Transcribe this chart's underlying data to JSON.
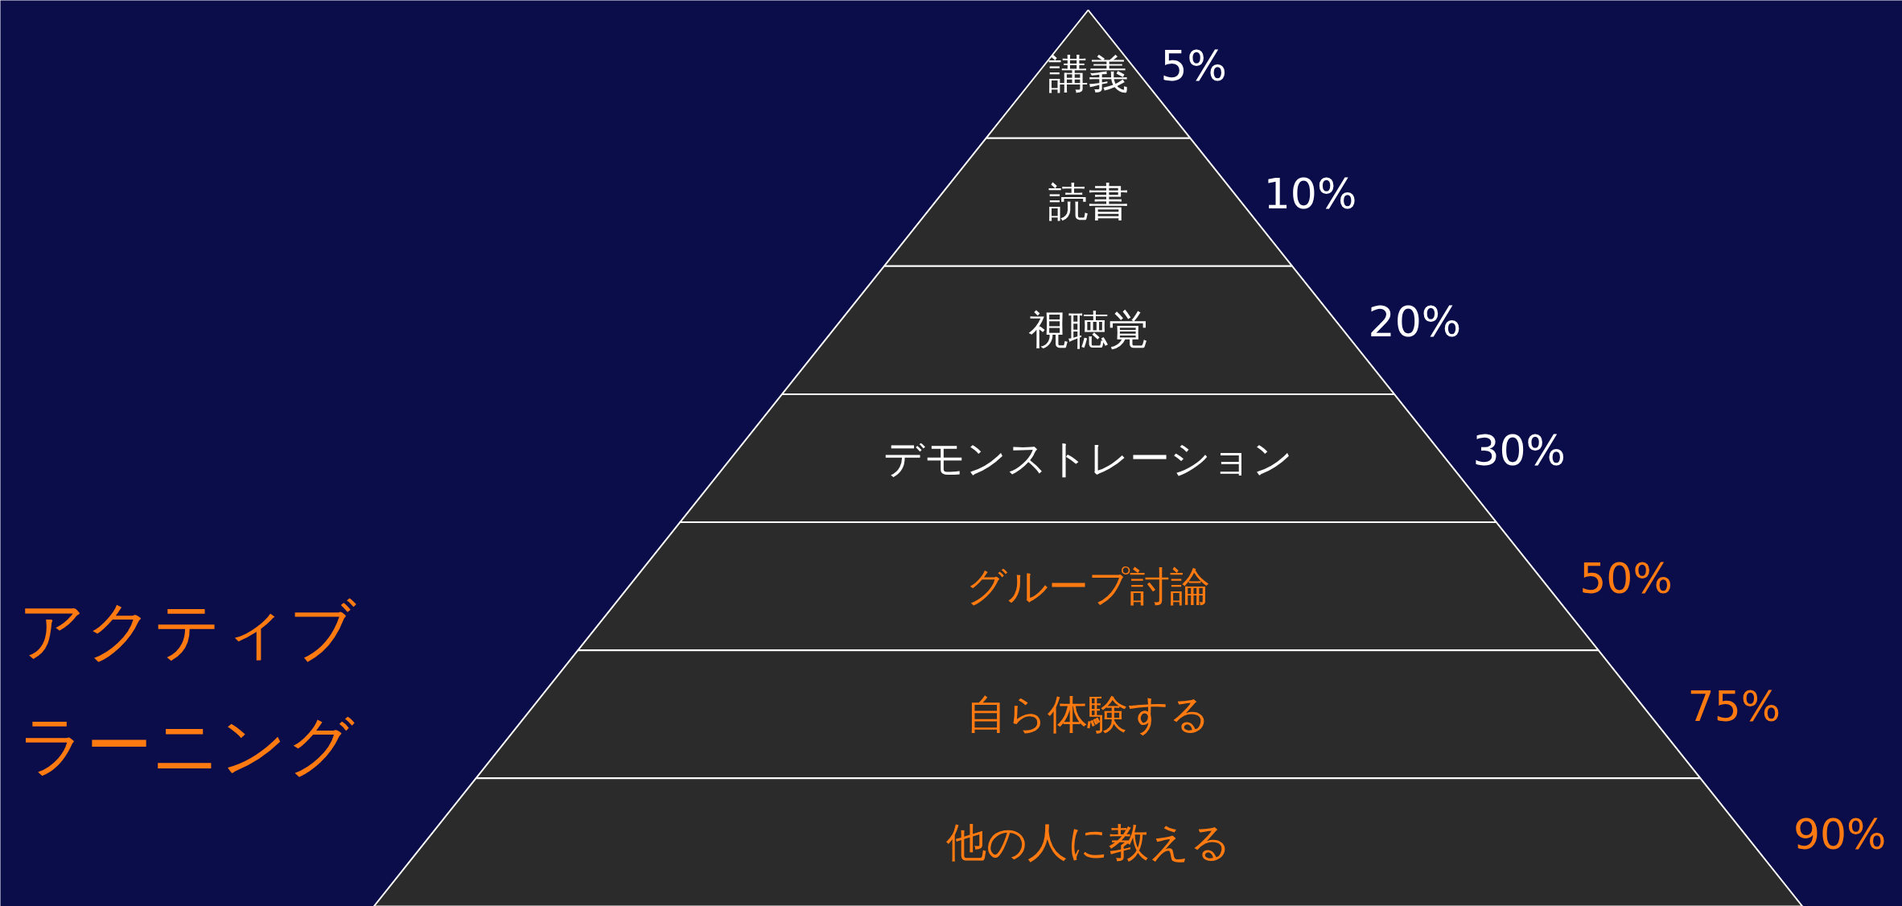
{
  "chart_data": {
    "type": "other",
    "categories": [
      "講義",
      "読書",
      "視聴覚",
      "デモンストレーション",
      "グループ討論",
      "自ら体験する",
      "他の人に教える"
    ],
    "series": [
      {
        "color": "#ffffff",
        "values": [
          5,
          10,
          20,
          30,
          null,
          null,
          null
        ],
        "value_labels": [
          "5%",
          "10%",
          "20%",
          "30%",
          null,
          null,
          null
        ]
      },
      {
        "color": "#ff7a10",
        "values": [
          null,
          null,
          null,
          null,
          50,
          75,
          90
        ],
        "value_labels": [
          null,
          null,
          null,
          null,
          "50%",
          "75%",
          "90%"
        ]
      }
    ],
    "annotations": [
      "アクティブ",
      "ラーニング"
    ]
  }
}
